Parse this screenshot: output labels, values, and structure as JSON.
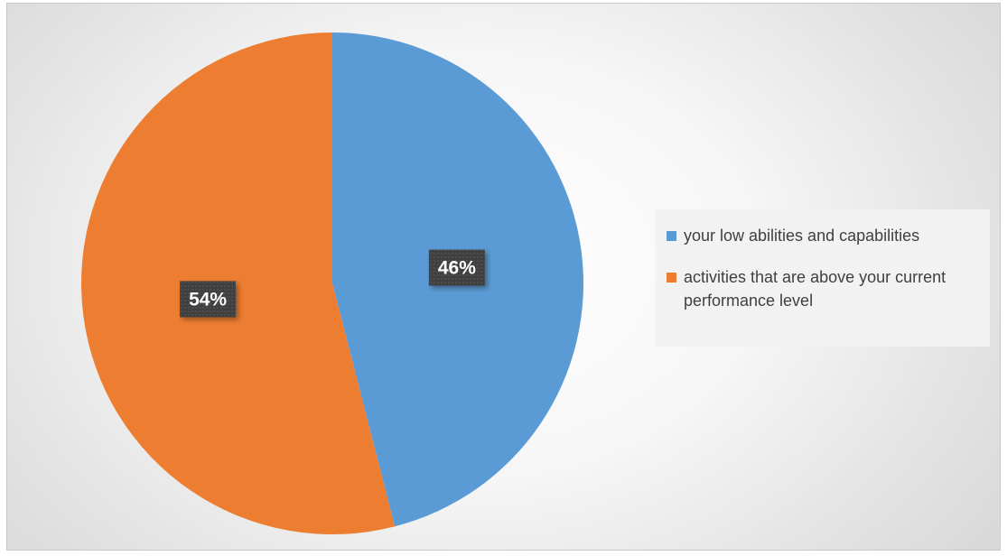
{
  "chart_data": {
    "type": "pie",
    "title": "",
    "slices": [
      {
        "label": "your low abilities and capabilities",
        "value": 46,
        "value_label": "46%",
        "color": "#5b9bd5"
      },
      {
        "label": "activities that are above your current performance level",
        "value": 54,
        "value_label": "54%",
        "color": "#ed7d31"
      }
    ],
    "start_angle_deg": 0,
    "direction": "clockwise",
    "legend": {
      "position": "right"
    },
    "data_labels": {
      "background": "#404040",
      "color": "#ffffff"
    }
  }
}
